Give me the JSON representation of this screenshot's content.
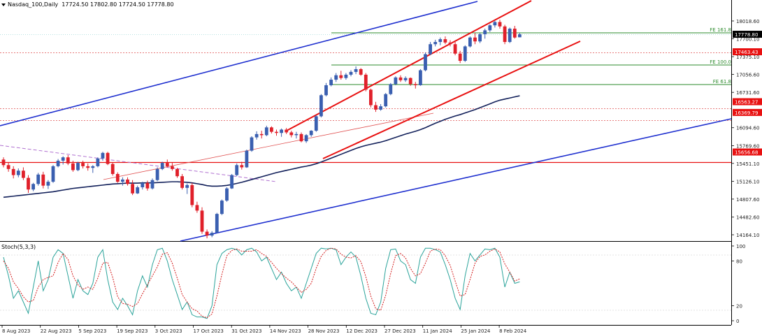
{
  "header": {
    "symbol": "Nasdaq_100,Daily",
    "ohlc": "17724.50 17802.80 17724.50 17778.80"
  },
  "indicator": {
    "label": "Stoch(5,3,3)"
  },
  "price_axis": {
    "ticks": [
      "18018.60",
      "17700.10",
      "17375.10",
      "17056.60",
      "16731.60",
      "16094.60",
      "15769.60",
      "15451.10",
      "15126.10",
      "14807.60",
      "14482.60",
      "14164.10"
    ],
    "tags": [
      {
        "text": "17778.80",
        "kind": "current"
      },
      {
        "text": "17463.43",
        "kind": "level"
      },
      {
        "text": "16563.27",
        "kind": "level"
      },
      {
        "text": "16369.79",
        "kind": "level"
      },
      {
        "text": "15656.68",
        "kind": "level"
      }
    ]
  },
  "stoch_axis": {
    "ticks": [
      "100",
      "80",
      "20",
      "0"
    ]
  },
  "fib_labels": [
    "FE 161.8",
    "FE 100.0",
    "FE 61.8"
  ],
  "date_axis": [
    "8 Aug 2023",
    "22 Aug 2023",
    "5 Sep 2023",
    "19 Sep 2023",
    "3 Oct 2023",
    "17 Oct 2023",
    "31 Oct 2023",
    "14 Nov 2023",
    "28 Nov 2023",
    "12 Dec 2023",
    "27 Dec 2023",
    "11 Jan 2024",
    "25 Jan 2024",
    "8 Feb 2024"
  ],
  "colors": {
    "bull": "#3a5fb0",
    "bear": "#e0202a",
    "channel_blue": "#1e2fcf",
    "channel_red": "#e81010",
    "ma": "#12205a",
    "fib": "#2e8b2e",
    "stoch_k": "#2aa39a",
    "stoch_d": "#d42020"
  },
  "chart_data": {
    "type": "candlestick",
    "ylim": [
      14000,
      18200
    ],
    "stoch_ylim": [
      0,
      100
    ],
    "candles": [
      [
        15520,
        15560,
        15380,
        15420
      ],
      [
        15420,
        15470,
        15300,
        15350
      ],
      [
        15350,
        15400,
        15180,
        15240
      ],
      [
        15240,
        15360,
        15200,
        15320
      ],
      [
        15320,
        15380,
        15150,
        15190
      ],
      [
        15190,
        15240,
        14920,
        14980
      ],
      [
        14980,
        15100,
        14950,
        15080
      ],
      [
        15080,
        15280,
        15050,
        15250
      ],
      [
        15250,
        15300,
        15000,
        15050
      ],
      [
        15050,
        15150,
        14990,
        15120
      ],
      [
        15120,
        15420,
        15100,
        15400
      ],
      [
        15400,
        15530,
        15380,
        15500
      ],
      [
        15500,
        15580,
        15430,
        15560
      ],
      [
        15560,
        15600,
        15420,
        15450
      ],
      [
        15450,
        15500,
        15300,
        15330
      ],
      [
        15330,
        15480,
        15310,
        15460
      ],
      [
        15460,
        15500,
        15360,
        15400
      ],
      [
        15400,
        15450,
        15320,
        15370
      ],
      [
        15370,
        15420,
        15280,
        15400
      ],
      [
        15400,
        15560,
        15380,
        15540
      ],
      [
        15540,
        15660,
        15500,
        15640
      ],
      [
        15640,
        15660,
        15420,
        15440
      ],
      [
        15440,
        15470,
        15230,
        15260
      ],
      [
        15260,
        15290,
        15100,
        15120
      ],
      [
        15120,
        15200,
        15050,
        15160
      ],
      [
        15160,
        15200,
        15050,
        15080
      ],
      [
        15080,
        15150,
        14880,
        14910
      ],
      [
        14910,
        15050,
        14900,
        15020
      ],
      [
        15020,
        15120,
        14980,
        15100
      ],
      [
        15100,
        15140,
        14960,
        15000
      ],
      [
        15000,
        15180,
        14980,
        15150
      ],
      [
        15150,
        15380,
        15130,
        15350
      ],
      [
        15350,
        15480,
        15330,
        15460
      ],
      [
        15460,
        15520,
        15380,
        15400
      ],
      [
        15400,
        15460,
        15320,
        15350
      ],
      [
        15350,
        15370,
        15190,
        15220
      ],
      [
        15220,
        15260,
        14980,
        15010
      ],
      [
        15010,
        15090,
        14900,
        15060
      ],
      [
        15060,
        15100,
        14660,
        14700
      ],
      [
        14700,
        14760,
        14560,
        14600
      ],
      [
        14600,
        14660,
        14180,
        14220
      ],
      [
        14220,
        14260,
        14100,
        14150
      ],
      [
        14150,
        14230,
        14120,
        14200
      ],
      [
        14200,
        14560,
        14190,
        14540
      ],
      [
        14540,
        14800,
        14520,
        14780
      ],
      [
        14780,
        15020,
        14760,
        15000
      ],
      [
        15000,
        15260,
        14990,
        15240
      ],
      [
        15240,
        15450,
        15220,
        15420
      ],
      [
        15420,
        15480,
        15340,
        15380
      ],
      [
        15380,
        15700,
        15370,
        15680
      ],
      [
        15680,
        15940,
        15660,
        15920
      ],
      [
        15920,
        16030,
        15880,
        15980
      ],
      [
        15980,
        16040,
        15900,
        15960
      ],
      [
        15960,
        16130,
        15940,
        16100
      ],
      [
        16100,
        16120,
        15990,
        16020
      ],
      [
        16020,
        16060,
        15950,
        16000
      ],
      [
        16000,
        16080,
        15930,
        16060
      ],
      [
        16060,
        16090,
        15980,
        16010
      ],
      [
        16010,
        16040,
        15920,
        15960
      ],
      [
        15960,
        16020,
        15900,
        15980
      ],
      [
        15980,
        16010,
        15830,
        15850
      ],
      [
        15850,
        15980,
        15820,
        15960
      ],
      [
        15960,
        16050,
        15930,
        16040
      ],
      [
        16040,
        16320,
        16020,
        16300
      ],
      [
        16300,
        16700,
        16280,
        16680
      ],
      [
        16680,
        16900,
        16660,
        16860
      ],
      [
        16860,
        17000,
        16840,
        16960
      ],
      [
        16960,
        17080,
        16920,
        17040
      ],
      [
        17040,
        17120,
        16960,
        16990
      ],
      [
        16990,
        17080,
        16960,
        17050
      ],
      [
        17050,
        17130,
        17020,
        17100
      ],
      [
        17100,
        17200,
        17060,
        17150
      ],
      [
        17150,
        17170,
        17030,
        17050
      ],
      [
        17050,
        17080,
        16750,
        16780
      ],
      [
        16780,
        16800,
        16460,
        16500
      ],
      [
        16500,
        16560,
        16380,
        16420
      ],
      [
        16420,
        16520,
        16400,
        16480
      ],
      [
        16480,
        16720,
        16460,
        16700
      ],
      [
        16700,
        16900,
        16680,
        16880
      ],
      [
        16880,
        17020,
        16860,
        17000
      ],
      [
        17000,
        17040,
        16920,
        16950
      ],
      [
        16950,
        17020,
        16920,
        16990
      ],
      [
        16990,
        17000,
        16850,
        16880
      ],
      [
        16880,
        16920,
        16800,
        16860
      ],
      [
        16860,
        17150,
        16850,
        17130
      ],
      [
        17130,
        17450,
        17110,
        17420
      ],
      [
        17420,
        17640,
        17400,
        17600
      ],
      [
        17600,
        17680,
        17560,
        17640
      ],
      [
        17640,
        17720,
        17580,
        17690
      ],
      [
        17690,
        17740,
        17600,
        17630
      ],
      [
        17630,
        17670,
        17560,
        17600
      ],
      [
        17600,
        17640,
        17400,
        17430
      ],
      [
        17430,
        17480,
        17260,
        17300
      ],
      [
        17300,
        17580,
        17280,
        17560
      ],
      [
        17560,
        17740,
        17540,
        17720
      ],
      [
        17720,
        17800,
        17600,
        17650
      ],
      [
        17650,
        17800,
        17620,
        17780
      ],
      [
        17780,
        17880,
        17700,
        17850
      ],
      [
        17850,
        17960,
        17820,
        17940
      ],
      [
        17940,
        18020,
        17900,
        18000
      ],
      [
        18000,
        18040,
        17880,
        17920
      ],
      [
        17920,
        17950,
        17600,
        17640
      ],
      [
        17640,
        17900,
        17620,
        17880
      ],
      [
        17880,
        17930,
        17700,
        17720
      ],
      [
        17724.5,
        17802.8,
        17724.5,
        17778.8
      ]
    ],
    "ma": [
      14840,
      14850,
      14860,
      14870,
      14880,
      14890,
      14900,
      14910,
      14920,
      14930,
      14940,
      14955,
      14970,
      14985,
      15000,
      15010,
      15020,
      15030,
      15040,
      15050,
      15060,
      15070,
      15080,
      15085,
      15090,
      15095,
      15095,
      15095,
      15100,
      15100,
      15100,
      15105,
      15110,
      15115,
      15120,
      15120,
      15115,
      15110,
      15100,
      15085,
      15070,
      15050,
      15040,
      15040,
      15045,
      15055,
      15070,
      15090,
      15110,
      15135,
      15160,
      15185,
      15210,
      15235,
      15260,
      15285,
      15305,
      15325,
      15345,
      15365,
      15385,
      15400,
      15420,
      15445,
      15475,
      15510,
      15545,
      15580,
      15615,
      15650,
      15685,
      15720,
      15750,
      15775,
      15795,
      15815,
      15835,
      15860,
      15890,
      15920,
      15950,
      15980,
      16005,
      16030,
      16060,
      16095,
      16135,
      16175,
      16210,
      16245,
      16275,
      16305,
      16330,
      16360,
      16390,
      16420,
      16455,
      16490,
      16525,
      16560,
      16590,
      16610,
      16630,
      16650,
      16670
    ],
    "stoch_k": [
      85,
      60,
      30,
      40,
      25,
      10,
      45,
      80,
      40,
      55,
      85,
      95,
      90,
      60,
      30,
      55,
      40,
      35,
      50,
      85,
      95,
      55,
      25,
      15,
      30,
      20,
      8,
      40,
      60,
      45,
      75,
      95,
      97,
      80,
      55,
      35,
      15,
      25,
      8,
      5,
      5,
      3,
      20,
      75,
      90,
      95,
      97,
      95,
      88,
      95,
      97,
      92,
      80,
      85,
      70,
      55,
      65,
      50,
      40,
      45,
      30,
      50,
      70,
      90,
      97,
      96,
      97,
      95,
      75,
      85,
      92,
      85,
      60,
      30,
      10,
      8,
      25,
      70,
      95,
      96,
      80,
      75,
      55,
      50,
      85,
      97,
      97,
      95,
      92,
      75,
      55,
      30,
      15,
      60,
      90,
      80,
      88,
      96,
      95,
      97,
      85,
      45,
      65,
      50,
      52
    ],
    "stoch_d": [
      80,
      70,
      52,
      43,
      32,
      25,
      27,
      45,
      55,
      58,
      60,
      78,
      90,
      82,
      60,
      48,
      42,
      45,
      42,
      57,
      77,
      78,
      58,
      32,
      23,
      22,
      19,
      23,
      36,
      48,
      60,
      72,
      89,
      91,
      77,
      57,
      35,
      25,
      16,
      13,
      6,
      4,
      9,
      33,
      62,
      87,
      94,
      96,
      93,
      93,
      93,
      95,
      90,
      86,
      78,
      70,
      63,
      57,
      52,
      45,
      38,
      42,
      50,
      70,
      86,
      94,
      97,
      96,
      89,
      85,
      84,
      87,
      79,
      59,
      33,
      16,
      14,
      34,
      63,
      87,
      90,
      84,
      70,
      60,
      63,
      77,
      93,
      96,
      95,
      87,
      74,
      53,
      33,
      35,
      55,
      77,
      86,
      88,
      93,
      96,
      92,
      76,
      65,
      53,
      56
    ]
  }
}
